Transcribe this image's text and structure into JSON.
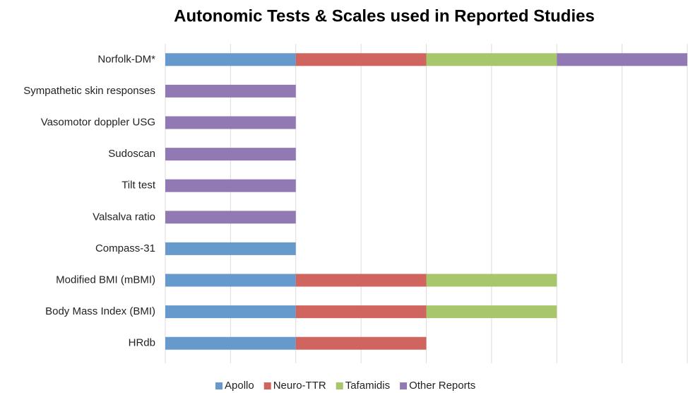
{
  "chart_data": {
    "type": "stacked-barh",
    "title": "Autonomic Tests & Scales used in Reported Studies",
    "categories": [
      "Norfolk-DM*",
      "Sympathetic skin responses",
      "Vasomotor doppler USG",
      "Sudoscan",
      "Tilt test",
      "Valsalva ratio",
      "Compass-31",
      "Modified BMI (mBMI)",
      "Body Mass Index (BMI)",
      "HRdb"
    ],
    "series": [
      {
        "name": "Apollo",
        "color": "#6699cc",
        "values": [
          1,
          0,
          0,
          0,
          0,
          0,
          1,
          1,
          1,
          1
        ]
      },
      {
        "name": "Neuro-TTR",
        "color": "#d0655f",
        "values": [
          1,
          0,
          0,
          0,
          0,
          0,
          0,
          1,
          1,
          1
        ]
      },
      {
        "name": "Tafamidis",
        "color": "#a8c66c",
        "values": [
          1,
          0,
          0,
          0,
          0,
          0,
          0,
          1,
          1,
          0
        ]
      },
      {
        "name": "Other Reports",
        "color": "#9179b3",
        "values": [
          1,
          1,
          1,
          1,
          1,
          1,
          0,
          0,
          0,
          0
        ]
      }
    ],
    "xlim": [
      0,
      4
    ],
    "xticks": [
      0,
      0.5,
      1,
      1.5,
      2,
      2.5,
      3,
      3.5,
      4
    ],
    "grid": true,
    "legend": "bottom"
  }
}
